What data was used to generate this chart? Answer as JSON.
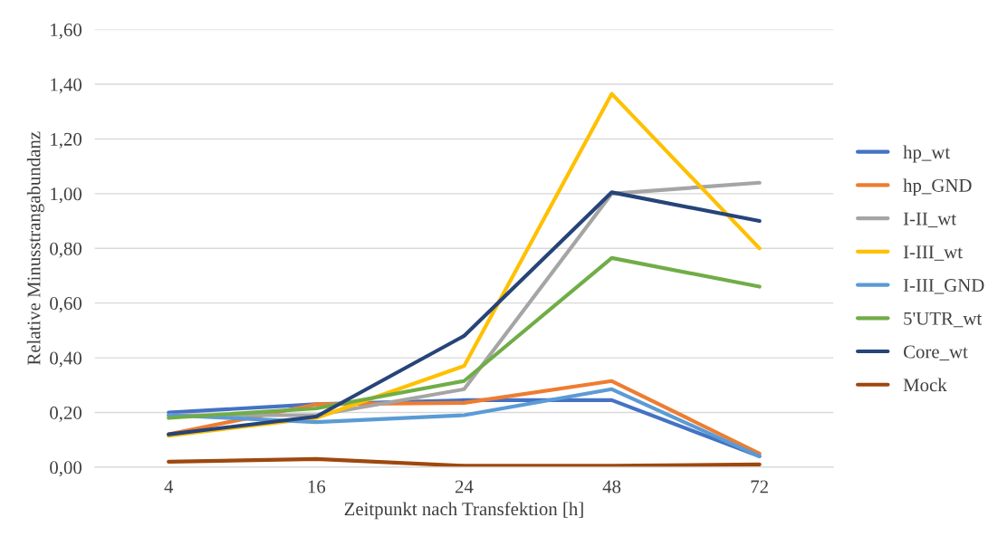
{
  "chart_data": {
    "type": "line",
    "xlabel": "Zeitpunkt nach Transfektion [h]",
    "ylabel": "Relative Minusstrangabundanz",
    "categories": [
      "4",
      "16",
      "24",
      "48",
      "72"
    ],
    "series": [
      {
        "name": "hp_wt",
        "color": "#4472c4",
        "values": [
          0.2,
          0.23,
          0.245,
          0.245,
          0.04
        ]
      },
      {
        "name": "hp_GND",
        "color": "#ed7d31",
        "values": [
          0.12,
          0.23,
          0.235,
          0.315,
          0.05
        ]
      },
      {
        "name": "I-II_wt",
        "color": "#a5a5a5",
        "values": [
          0.19,
          0.19,
          0.285,
          1.0,
          1.04
        ]
      },
      {
        "name": "I-III_wt",
        "color": "#ffc000",
        "values": [
          0.115,
          0.18,
          0.37,
          1.365,
          0.8
        ]
      },
      {
        "name": "I-III_GND",
        "color": "#5b9bd5",
        "values": [
          0.19,
          0.165,
          0.19,
          0.285,
          0.04
        ]
      },
      {
        "name": "5'UTR_wt",
        "color": "#70ad47",
        "values": [
          0.18,
          0.215,
          0.315,
          0.765,
          0.66
        ]
      },
      {
        "name": "Core_wt",
        "color": "#264478",
        "values": [
          0.12,
          0.185,
          0.48,
          1.005,
          0.9
        ]
      },
      {
        "name": "Mock",
        "color": "#9e480e",
        "values": [
          0.02,
          0.03,
          0.005,
          0.005,
          0.01
        ]
      }
    ],
    "ylim": [
      0,
      1.6
    ],
    "yticks": [
      {
        "value": 0,
        "label": "0,00"
      },
      {
        "value": 0.2,
        "label": "0,20"
      },
      {
        "value": 0.4,
        "label": "0,40"
      },
      {
        "value": 0.6,
        "label": "0,60"
      },
      {
        "value": 0.8,
        "label": "0,80"
      },
      {
        "value": 1.0,
        "label": "1,00"
      },
      {
        "value": 1.2,
        "label": "1,20"
      },
      {
        "value": 1.4,
        "label": "1,40"
      },
      {
        "value": 1.6,
        "label": "1,60"
      }
    ],
    "grid": "y",
    "legend": "right",
    "marker": "none",
    "line_style": "solid"
  }
}
